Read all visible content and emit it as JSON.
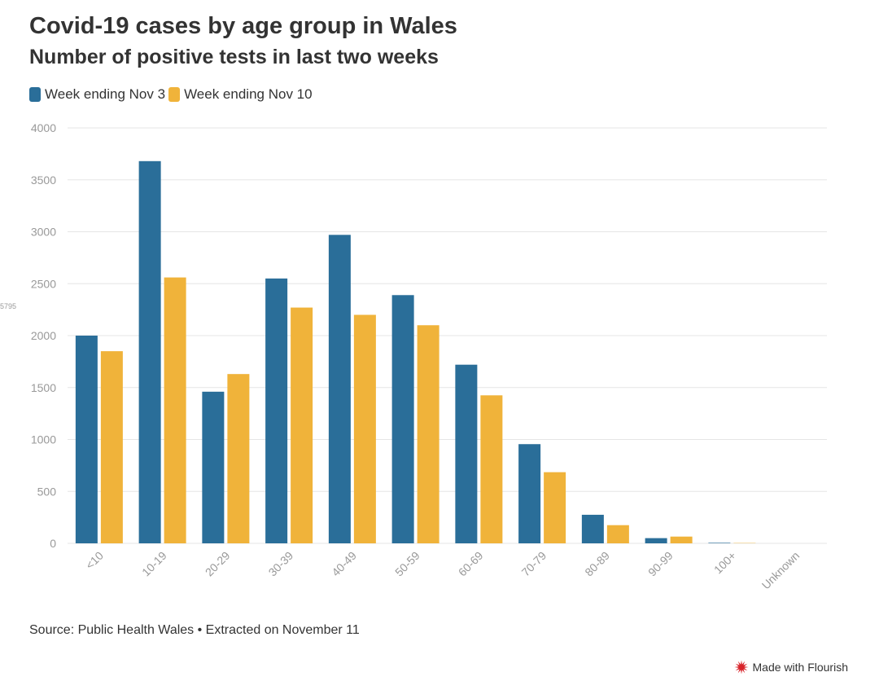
{
  "header": {
    "title": "Covid-19 cases by age group in Wales",
    "subtitle": "Number of positive tests in last two weeks"
  },
  "side_label": "5795",
  "footer": {
    "source": "Source: Public Health Wales • Extracted on November 11",
    "credit": "Made with Flourish"
  },
  "colors": {
    "series1": "#2a6e99",
    "series2": "#f0b33a",
    "grid": "#e6e6e6",
    "tick": "#999999",
    "credit_icon": "#d8232a"
  },
  "chart_data": {
    "type": "bar",
    "title": "Covid-19 cases by age group in Wales",
    "subtitle": "Number of positive tests in last two weeks",
    "xlabel": "",
    "ylabel": "",
    "ylim": [
      0,
      4000
    ],
    "yticks": [
      0,
      500,
      1000,
      1500,
      2000,
      2500,
      3000,
      3500,
      4000
    ],
    "grid": true,
    "legend_position": "top-left",
    "categories": [
      "<10",
      "10-19",
      "20-29",
      "30-39",
      "40-49",
      "50-59",
      "60-69",
      "70-79",
      "80-89",
      "90-99",
      "100+",
      "Unknown"
    ],
    "series": [
      {
        "name": "Week ending Nov 3",
        "values": [
          2000,
          3680,
          1460,
          2550,
          2970,
          2390,
          1720,
          955,
          275,
          50,
          5,
          0
        ]
      },
      {
        "name": "Week ending Nov 10",
        "values": [
          1850,
          2560,
          1630,
          2270,
          2200,
          2100,
          1425,
          685,
          175,
          65,
          3,
          0
        ]
      }
    ]
  }
}
